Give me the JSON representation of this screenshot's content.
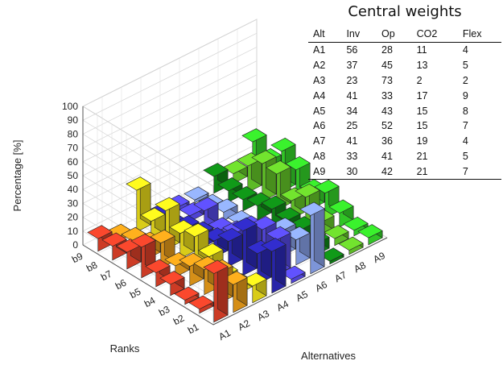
{
  "chart_data": [
    {
      "type": "bar3d",
      "zlabel": "Percentage [%]",
      "xlabel": "Alternatives",
      "ylabel": "Ranks",
      "zlim": [
        0,
        100
      ],
      "z_ticks": [
        "0",
        "10",
        "20",
        "30",
        "40",
        "50",
        "60",
        "70",
        "80",
        "90",
        "100"
      ],
      "alternatives": [
        "A1",
        "A2",
        "A3",
        "A4",
        "A5",
        "A6",
        "A7",
        "A8",
        "A9"
      ],
      "ranks": [
        "b1",
        "b2",
        "b3",
        "b4",
        "b5",
        "b6",
        "b7",
        "b8",
        "b9"
      ],
      "colors": [
        "#e8432a",
        "#f2a31b",
        "#f7e81c",
        "#2e2ac0",
        "#5a4cf0",
        "#8ea9f5",
        "#0f8f16",
        "#6ad32b",
        "#36e02a"
      ],
      "values": [
        [
          35,
          3,
          3,
          8,
          10,
          22,
          12,
          10,
          9
        ],
        [
          20,
          22,
          18,
          14,
          8,
          18,
          10,
          7,
          3
        ],
        [
          12,
          5,
          6,
          14,
          22,
          18,
          28,
          14,
          30
        ],
        [
          30,
          22,
          32,
          18,
          12,
          10,
          8,
          4,
          3
        ],
        [
          3,
          25,
          26,
          20,
          10,
          6,
          14,
          4,
          3
        ],
        [
          42,
          18,
          18,
          6,
          4,
          4,
          6,
          3,
          2
        ],
        [
          2,
          8,
          12,
          12,
          14,
          10,
          8,
          8,
          12
        ],
        [
          3,
          5,
          10,
          22,
          13,
          26,
          27,
          19,
          7
        ],
        [
          5,
          4,
          10,
          18,
          12,
          22,
          29,
          15,
          23
        ]
      ]
    },
    {
      "type": "table",
      "title": "Central weights",
      "columns": [
        "Alt",
        "Inv",
        "Op",
        "CO2",
        "Flex"
      ],
      "rows": [
        [
          "A1",
          "56",
          "28",
          "11",
          "4"
        ],
        [
          "A2",
          "37",
          "45",
          "13",
          "5"
        ],
        [
          "A3",
          "23",
          "73",
          "2",
          "2"
        ],
        [
          "A4",
          "41",
          "33",
          "17",
          "9"
        ],
        [
          "A5",
          "34",
          "43",
          "15",
          "8"
        ],
        [
          "A6",
          "25",
          "52",
          "15",
          "7"
        ],
        [
          "A7",
          "41",
          "36",
          "19",
          "4"
        ],
        [
          "A8",
          "33",
          "41",
          "21",
          "5"
        ],
        [
          "A9",
          "30",
          "42",
          "21",
          "7"
        ]
      ]
    }
  ]
}
